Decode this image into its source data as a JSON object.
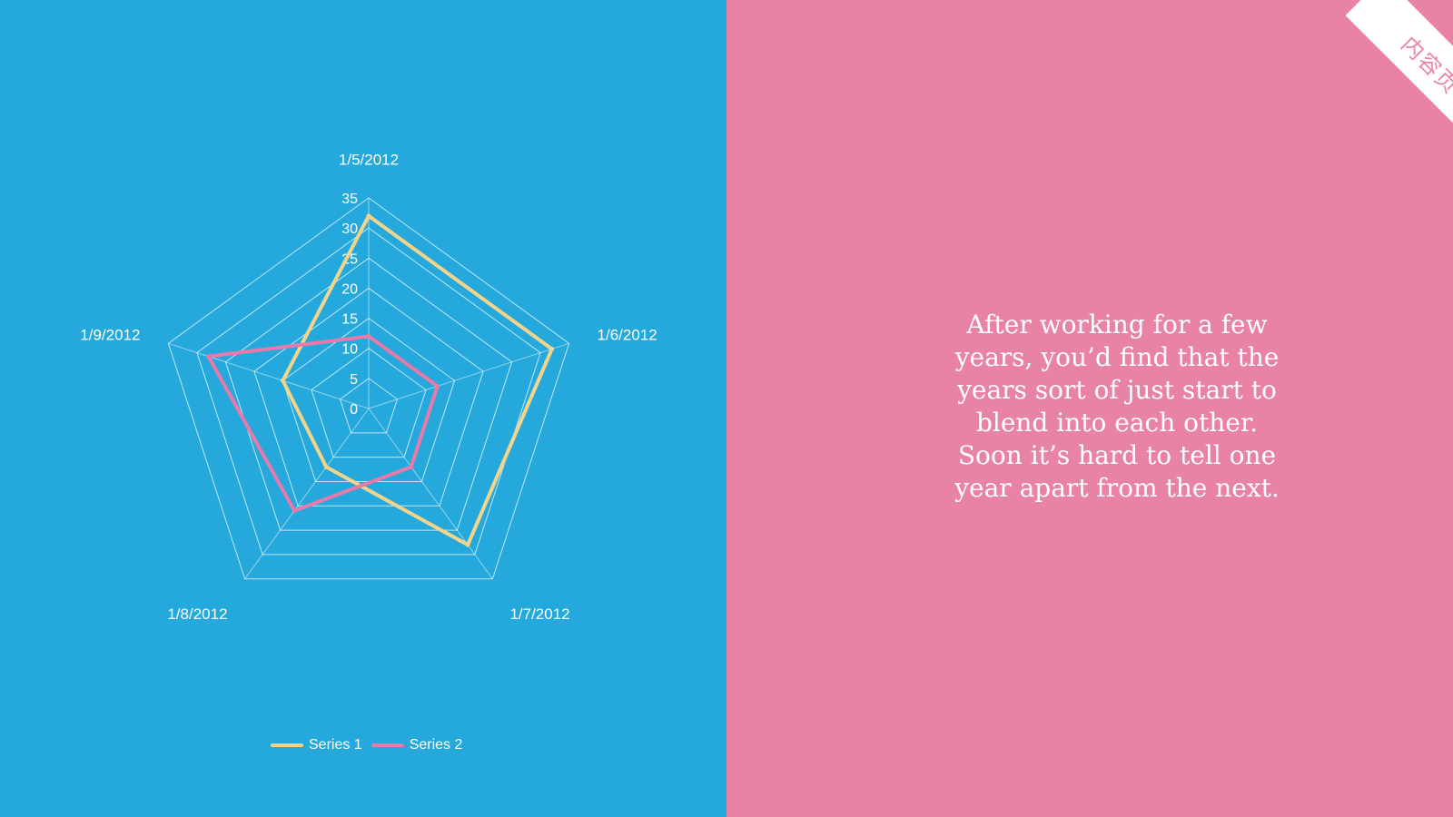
{
  "colors": {
    "left_bg": "#25a8db",
    "right_bg": "#e982a7",
    "series_1": "#f4d48a",
    "series_2": "#e879a8",
    "grid": "#d9f0fa",
    "text": "#ffffff"
  },
  "corner_tag": "内容页",
  "body_text": "After working for a few\nyears, you’d find that the\nyears sort of just start to\nblend into each other.\nSoon it’s hard to tell one\nyear apart from the next.",
  "chart_data": {
    "type": "radar",
    "title": "",
    "categories": [
      "1/5/2012",
      "1/6/2012",
      "1/7/2012",
      "1/8/2012",
      "1/9/2012"
    ],
    "ticks": [
      "0",
      "5",
      "10",
      "15",
      "20",
      "25",
      "30",
      "35"
    ],
    "rlim": [
      0,
      35
    ],
    "series": [
      {
        "name": "Series 1",
        "values": [
          32,
          32,
          28,
          12,
          15
        ]
      },
      {
        "name": "Series 2",
        "values": [
          12,
          12,
          12,
          21,
          28
        ]
      }
    ],
    "grid": true,
    "legend": "bottom"
  }
}
